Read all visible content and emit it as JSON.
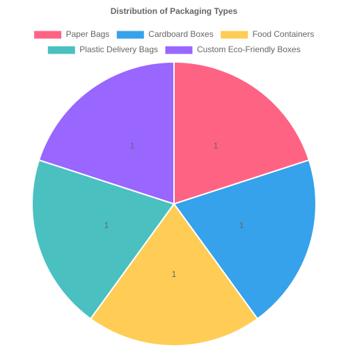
{
  "chart_data": {
    "type": "pie",
    "title": "Distribution of Packaging Types",
    "categories": [
      "Paper Bags",
      "Cardboard Boxes",
      "Food Containers",
      "Plastic Delivery Bags",
      "Custom Eco-Friendly Boxes"
    ],
    "values": [
      1,
      1,
      1,
      1,
      1
    ],
    "colors": [
      "#ff6384",
      "#36a2eb",
      "#ffcd56",
      "#4bc0c0",
      "#9966ff"
    ],
    "legend": "top"
  }
}
